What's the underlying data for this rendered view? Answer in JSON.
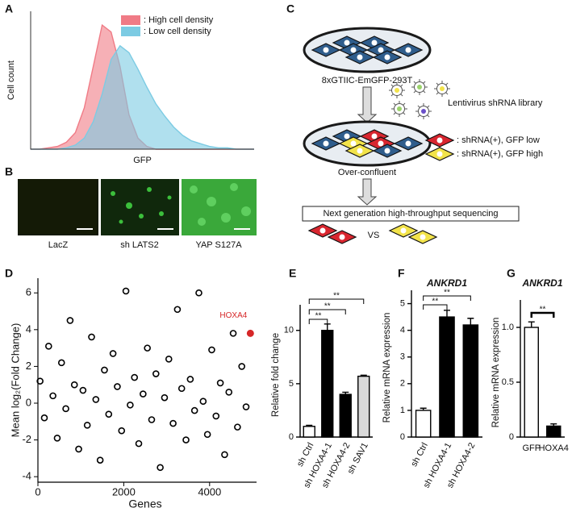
{
  "panel_labels": [
    "A",
    "B",
    "C",
    "D",
    "E",
    "F",
    "G"
  ],
  "images": {
    "labels": [
      "LacZ",
      "sh LATS2",
      "YAP S127A"
    ]
  },
  "diagram": {
    "cell_line": "8xGTIIC-EmGFP-293T",
    "library": "Lentivirus shRNA library",
    "legend": [
      ": shRNA(+), GFP low",
      ": shRNA(+), GFP high"
    ],
    "state": "Over-confluent",
    "sequencing": "Next generation high-throughput sequencing",
    "comparison": "VS"
  },
  "chart_data": [
    {
      "type": "area",
      "x_label": "GFP",
      "y_label": "Cell count",
      "x": [
        0,
        4,
        8,
        12,
        16,
        20,
        24,
        28,
        32,
        36,
        40,
        44,
        48,
        52,
        56,
        60,
        64,
        68,
        72,
        76,
        80,
        84,
        88,
        92,
        96,
        100
      ],
      "series": [
        {
          "name": ": High cell density",
          "color": "#f07b86",
          "values": [
            0,
            0,
            1,
            2,
            5,
            12,
            30,
            60,
            90,
            85,
            60,
            25,
            8,
            2,
            0,
            0,
            0,
            0,
            0,
            0,
            0,
            0,
            0,
            0,
            0,
            0
          ]
        },
        {
          "name": ": Low cell density",
          "color": "#7ccbe3",
          "values": [
            0,
            0,
            0,
            0,
            1,
            3,
            8,
            20,
            40,
            65,
            75,
            70,
            58,
            45,
            33,
            24,
            16,
            10,
            6,
            4,
            2,
            1,
            1,
            0,
            0,
            0
          ]
        }
      ],
      "xlim": [
        0,
        100
      ],
      "ylim": [
        0,
        100
      ]
    },
    {
      "type": "scatter",
      "x_label": "Genes",
      "y_label": "Mean log₂(Fold Change)",
      "x": [
        50,
        150,
        250,
        350,
        450,
        550,
        650,
        750,
        850,
        950,
        1050,
        1150,
        1250,
        1350,
        1450,
        1550,
        1650,
        1750,
        1850,
        1950,
        2050,
        2150,
        2250,
        2350,
        2450,
        2550,
        2650,
        2750,
        2850,
        2950,
        3050,
        3150,
        3250,
        3350,
        3450,
        3550,
        3650,
        3750,
        3850,
        3950,
        4050,
        4150,
        4250,
        4350,
        4450,
        4550,
        4650,
        4750,
        4850
      ],
      "y": [
        1.2,
        -0.8,
        3.1,
        0.4,
        -1.9,
        2.2,
        -0.3,
        4.5,
        1.0,
        -2.5,
        0.7,
        -1.2,
        3.6,
        0.2,
        -3.1,
        1.8,
        -0.6,
        2.7,
        0.9,
        -1.5,
        6.1,
        -0.1,
        1.4,
        -2.2,
        0.5,
        3.0,
        -0.9,
        1.6,
        -3.5,
        0.3,
        2.4,
        -1.1,
        5.1,
        0.8,
        -2.0,
        1.3,
        -0.4,
        6.0,
        0.1,
        -1.7,
        2.9,
        -0.7,
        1.1,
        -2.8,
        0.6,
        3.8,
        -1.3,
        2.0,
        -0.2
      ],
      "color": "#000000",
      "highlight": {
        "label": "HOXA4",
        "x": 4950,
        "y": 3.8,
        "color": "#d62728"
      },
      "xlim": [
        0,
        5000
      ],
      "ylim": [
        -4.3,
        6.8
      ],
      "xticks": [
        0,
        2000,
        4000
      ],
      "yticks": [
        -4,
        -2,
        0,
        2,
        4,
        6
      ]
    },
    {
      "type": "bar",
      "y_label": "Relative fold change",
      "categories": [
        "sh Ctrl",
        "sh HOXA4-1",
        "sh HOXA4-2",
        "sh SAV1"
      ],
      "values": [
        1,
        10,
        4,
        5.7
      ],
      "errors": [
        0.1,
        0.6,
        0.2,
        0.1
      ],
      "colors": [
        "#ffffff",
        "#000000",
        "#000000",
        "#d9d9d9"
      ],
      "ylim": [
        0,
        12.4
      ],
      "yticks": [
        0,
        5,
        10
      ],
      "significance": [
        "**",
        "**",
        "**"
      ]
    },
    {
      "type": "bar",
      "title": "ANKRD1",
      "y_label": "Relative mRNA expression",
      "categories": [
        "sh Ctrl",
        "sh HOXA4-1",
        "sh HOXA4-2"
      ],
      "values": [
        1,
        4.5,
        4.2
      ],
      "errors": [
        0.08,
        0.25,
        0.25
      ],
      "colors": [
        "#ffffff",
        "#000000",
        "#000000"
      ],
      "ylim": [
        0,
        5.5
      ],
      "yticks": [
        0,
        1,
        2,
        3,
        4,
        5
      ],
      "significance": [
        "**",
        "**"
      ]
    },
    {
      "type": "bar",
      "title": "ANKRD1",
      "y_label": "Relative mRNA expression",
      "categories": [
        "GFP",
        "HOXA4"
      ],
      "values": [
        1,
        0.1
      ],
      "errors": [
        0.05,
        0.02
      ],
      "colors": [
        "#ffffff",
        "#000000"
      ],
      "ylim": [
        0,
        1.25
      ],
      "yticks": [
        0,
        0.5,
        {
          "value": 1,
          "label": "1.0"
        }
      ],
      "significance": [
        "**"
      ]
    }
  ]
}
